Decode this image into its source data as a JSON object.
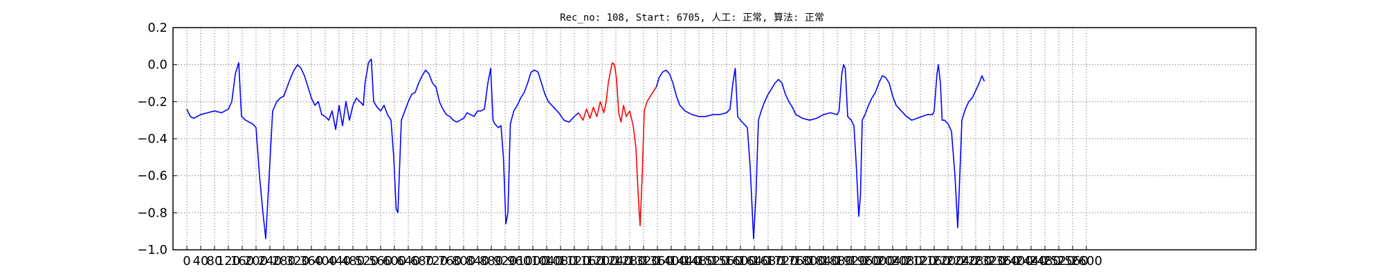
{
  "chart_data": {
    "type": "line",
    "title": "Rec_no: 108, Start: 6705, 人工: 正常, 算法: 正常",
    "xlabel": "",
    "ylabel": "",
    "xlim": [
      0,
      3000
    ],
    "ylim": [
      -1.0,
      0.2
    ],
    "yticks": [
      0.2,
      0.0,
      -0.2,
      -0.4,
      -0.6,
      -0.8,
      -1.0
    ],
    "ytick_labels": [
      "0.2",
      "0.0",
      "−0.2",
      "−0.4",
      "−0.6",
      "−0.8",
      "−1.0"
    ],
    "xticks": [
      0,
      40,
      80,
      120,
      160,
      200,
      240,
      280,
      320,
      360,
      400,
      440,
      480,
      520,
      560,
      600,
      640,
      680,
      720,
      760,
      800,
      840,
      880,
      920,
      960,
      1000,
      1040,
      1080,
      1120,
      1160,
      1200,
      1240,
      1280,
      1320,
      1360,
      1400,
      1440,
      1480,
      1520,
      1560,
      1600,
      1640,
      1680,
      1720,
      1760,
      1800,
      1840,
      1880,
      1920,
      1960,
      2000,
      2040,
      2080,
      2120,
      2160,
      2200,
      2240,
      2280,
      2320,
      2360,
      2400,
      2440,
      2480,
      2520,
      2560,
      2600
    ],
    "grid": true,
    "series": [
      {
        "color": "#0000ff",
        "points": [
          [
            0,
            -0.24
          ],
          [
            10,
            -0.28
          ],
          [
            20,
            -0.29
          ],
          [
            40,
            -0.27
          ],
          [
            60,
            -0.26
          ],
          [
            80,
            -0.25
          ],
          [
            100,
            -0.26
          ],
          [
            110,
            -0.25
          ],
          [
            120,
            -0.24
          ],
          [
            130,
            -0.2
          ],
          [
            140,
            -0.05
          ],
          [
            150,
            0.01
          ],
          [
            158,
            -0.28
          ],
          [
            170,
            -0.3
          ],
          [
            180,
            -0.31
          ],
          [
            190,
            -0.32
          ],
          [
            200,
            -0.34
          ],
          [
            210,
            -0.6
          ],
          [
            220,
            -0.8
          ],
          [
            228,
            -0.94
          ],
          [
            238,
            -0.6
          ],
          [
            248,
            -0.25
          ],
          [
            260,
            -0.2
          ],
          [
            270,
            -0.18
          ],
          [
            280,
            -0.17
          ],
          [
            290,
            -0.12
          ],
          [
            300,
            -0.07
          ],
          [
            310,
            -0.03
          ],
          [
            320,
            0.0
          ],
          [
            330,
            -0.02
          ],
          [
            340,
            -0.06
          ],
          [
            350,
            -0.12
          ],
          [
            360,
            -0.18
          ],
          [
            370,
            -0.22
          ],
          [
            380,
            -0.2
          ],
          [
            390,
            -0.27
          ],
          [
            400,
            -0.28
          ],
          [
            410,
            -0.3
          ],
          [
            420,
            -0.25
          ],
          [
            430,
            -0.35
          ],
          [
            440,
            -0.22
          ],
          [
            450,
            -0.33
          ],
          [
            460,
            -0.2
          ],
          [
            470,
            -0.3
          ],
          [
            480,
            -0.22
          ],
          [
            490,
            -0.18
          ],
          [
            500,
            -0.2
          ],
          [
            510,
            -0.22
          ],
          [
            515,
            -0.1
          ],
          [
            525,
            0.01
          ],
          [
            533,
            0.03
          ],
          [
            540,
            -0.2
          ],
          [
            550,
            -0.23
          ],
          [
            560,
            -0.25
          ],
          [
            570,
            -0.22
          ],
          [
            580,
            -0.27
          ],
          [
            590,
            -0.3
          ],
          [
            598,
            -0.5
          ],
          [
            605,
            -0.78
          ],
          [
            610,
            -0.8
          ],
          [
            620,
            -0.3
          ],
          [
            630,
            -0.25
          ],
          [
            640,
            -0.2
          ],
          [
            650,
            -0.16
          ],
          [
            660,
            -0.15
          ],
          [
            670,
            -0.1
          ],
          [
            680,
            -0.06
          ],
          [
            690,
            -0.03
          ],
          [
            700,
            -0.05
          ],
          [
            710,
            -0.1
          ],
          [
            720,
            -0.12
          ],
          [
            730,
            -0.2
          ],
          [
            740,
            -0.24
          ],
          [
            750,
            -0.27
          ],
          [
            760,
            -0.28
          ],
          [
            770,
            -0.3
          ],
          [
            780,
            -0.31
          ],
          [
            790,
            -0.3
          ],
          [
            800,
            -0.29
          ],
          [
            810,
            -0.26
          ],
          [
            820,
            -0.27
          ],
          [
            830,
            -0.28
          ],
          [
            840,
            -0.25
          ],
          [
            850,
            -0.25
          ],
          [
            860,
            -0.24
          ],
          [
            870,
            -0.1
          ],
          [
            878,
            -0.02
          ],
          [
            885,
            -0.3
          ],
          [
            890,
            -0.32
          ],
          [
            900,
            -0.34
          ],
          [
            908,
            -0.33
          ],
          [
            915,
            -0.5
          ],
          [
            922,
            -0.86
          ],
          [
            928,
            -0.8
          ],
          [
            935,
            -0.32
          ],
          [
            945,
            -0.25
          ],
          [
            955,
            -0.22
          ],
          [
            965,
            -0.18
          ],
          [
            975,
            -0.15
          ],
          [
            985,
            -0.1
          ],
          [
            995,
            -0.04
          ],
          [
            1005,
            -0.03
          ],
          [
            1015,
            -0.04
          ],
          [
            1025,
            -0.1
          ],
          [
            1035,
            -0.16
          ],
          [
            1045,
            -0.2
          ],
          [
            1060,
            -0.23
          ],
          [
            1075,
            -0.26
          ],
          [
            1090,
            -0.3
          ],
          [
            1105,
            -0.31
          ],
          [
            1120,
            -0.28
          ],
          [
            1132,
            -0.26
          ]
        ]
      },
      {
        "color": "#ff0000",
        "points": [
          [
            1132,
            -0.26
          ],
          [
            1145,
            -0.3
          ],
          [
            1155,
            -0.24
          ],
          [
            1165,
            -0.29
          ],
          [
            1175,
            -0.23
          ],
          [
            1185,
            -0.28
          ],
          [
            1195,
            -0.2
          ],
          [
            1205,
            -0.26
          ],
          [
            1212,
            -0.2
          ],
          [
            1218,
            -0.1
          ],
          [
            1225,
            -0.03
          ],
          [
            1230,
            0.01
          ],
          [
            1236,
            0.0
          ],
          [
            1242,
            -0.08
          ],
          [
            1248,
            -0.26
          ],
          [
            1255,
            -0.31
          ],
          [
            1262,
            -0.22
          ],
          [
            1270,
            -0.28
          ],
          [
            1280,
            -0.25
          ],
          [
            1290,
            -0.33
          ],
          [
            1298,
            -0.45
          ],
          [
            1305,
            -0.72
          ],
          [
            1310,
            -0.87
          ],
          [
            1316,
            -0.6
          ],
          [
            1322,
            -0.25
          ],
          [
            1330,
            -0.2
          ],
          [
            1340,
            -0.17
          ],
          [
            1350,
            -0.14
          ],
          [
            1357,
            -0.12
          ]
        ]
      },
      {
        "color": "#0000ff",
        "points": [
          [
            1357,
            -0.12
          ],
          [
            1365,
            -0.07
          ],
          [
            1375,
            -0.04
          ],
          [
            1385,
            -0.03
          ],
          [
            1395,
            -0.05
          ],
          [
            1405,
            -0.1
          ],
          [
            1415,
            -0.17
          ],
          [
            1425,
            -0.22
          ],
          [
            1440,
            -0.25
          ],
          [
            1460,
            -0.27
          ],
          [
            1480,
            -0.28
          ],
          [
            1500,
            -0.28
          ],
          [
            1520,
            -0.27
          ],
          [
            1540,
            -0.27
          ],
          [
            1560,
            -0.26
          ],
          [
            1570,
            -0.24
          ],
          [
            1578,
            -0.1
          ],
          [
            1585,
            -0.02
          ],
          [
            1592,
            -0.28
          ],
          [
            1600,
            -0.3
          ],
          [
            1610,
            -0.32
          ],
          [
            1620,
            -0.34
          ],
          [
            1628,
            -0.55
          ],
          [
            1638,
            -0.94
          ],
          [
            1645,
            -0.7
          ],
          [
            1652,
            -0.3
          ],
          [
            1660,
            -0.25
          ],
          [
            1670,
            -0.2
          ],
          [
            1680,
            -0.16
          ],
          [
            1690,
            -0.13
          ],
          [
            1700,
            -0.1
          ],
          [
            1710,
            -0.08
          ],
          [
            1720,
            -0.1
          ],
          [
            1730,
            -0.16
          ],
          [
            1740,
            -0.2
          ],
          [
            1750,
            -0.23
          ],
          [
            1760,
            -0.27
          ],
          [
            1780,
            -0.29
          ],
          [
            1800,
            -0.3
          ],
          [
            1820,
            -0.29
          ],
          [
            1840,
            -0.27
          ],
          [
            1860,
            -0.26
          ],
          [
            1880,
            -0.27
          ],
          [
            1885,
            -0.25
          ],
          [
            1893,
            -0.05
          ],
          [
            1898,
            0.0
          ],
          [
            1903,
            -0.02
          ],
          [
            1910,
            -0.28
          ],
          [
            1920,
            -0.3
          ],
          [
            1928,
            -0.33
          ],
          [
            1935,
            -0.55
          ],
          [
            1942,
            -0.82
          ],
          [
            1947,
            -0.7
          ],
          [
            1952,
            -0.3
          ],
          [
            1960,
            -0.27
          ],
          [
            1970,
            -0.22
          ],
          [
            1980,
            -0.18
          ],
          [
            1990,
            -0.15
          ],
          [
            2000,
            -0.1
          ],
          [
            2010,
            -0.06
          ],
          [
            2020,
            -0.07
          ],
          [
            2030,
            -0.1
          ],
          [
            2040,
            -0.17
          ],
          [
            2050,
            -0.22
          ],
          [
            2065,
            -0.25
          ],
          [
            2080,
            -0.28
          ],
          [
            2095,
            -0.3
          ],
          [
            2110,
            -0.29
          ],
          [
            2125,
            -0.28
          ],
          [
            2140,
            -0.27
          ],
          [
            2155,
            -0.27
          ],
          [
            2160,
            -0.25
          ],
          [
            2168,
            -0.05
          ],
          [
            2172,
            0.0
          ],
          [
            2178,
            -0.1
          ],
          [
            2183,
            -0.3
          ],
          [
            2190,
            -0.3
          ],
          [
            2200,
            -0.32
          ],
          [
            2210,
            -0.36
          ],
          [
            2220,
            -0.6
          ],
          [
            2228,
            -0.88
          ],
          [
            2234,
            -0.6
          ],
          [
            2240,
            -0.3
          ],
          [
            2250,
            -0.24
          ],
          [
            2260,
            -0.2
          ],
          [
            2270,
            -0.18
          ],
          [
            2280,
            -0.14
          ],
          [
            2290,
            -0.1
          ],
          [
            2298,
            -0.06
          ],
          [
            2305,
            -0.09
          ]
        ]
      }
    ]
  }
}
